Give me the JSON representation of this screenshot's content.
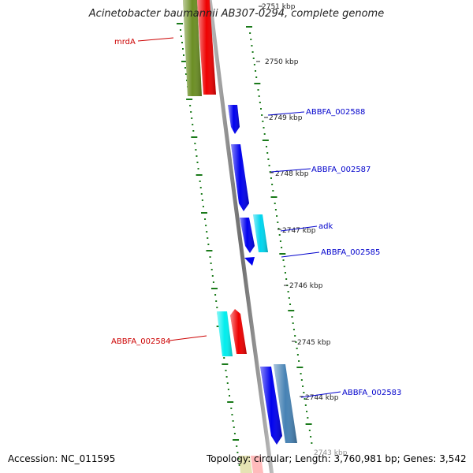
{
  "title": "Acinetobacter baumannii AB307-0294, complete genome",
  "accession": "Accession: NC_011595",
  "topology": "Topology: circular; Length: 3,760,981 bp; Genes: 3,542",
  "colors": {
    "backbone": "#8a8a8a",
    "tick": "#1a7a1a",
    "forward_label": "#0000cc",
    "reverse_label": "#cc0000",
    "scale_text": "#222222"
  },
  "scale_labels": [
    "2751 kbp",
    "2750 kbp",
    "2749 kbp",
    "2748 kbp",
    "2747 kbp",
    "2746 kbp",
    "2745 kbp",
    "2744 kbp",
    "2743 kbp"
  ],
  "gene_labels": {
    "mrdA": "mrdA",
    "ABBFA_002588": "ABBFA_002588",
    "ABBFA_002587": "ABBFA_002587",
    "adk": "adk",
    "ABBFA_002585": "ABBFA_002585",
    "ABBFA_002584": "ABBFA_002584",
    "ABBFA_002583": "ABBFA_002583"
  },
  "features": [
    {
      "name": "mrdA-olive",
      "color": "#6b8e23",
      "strand": "reverse"
    },
    {
      "name": "red-top",
      "color": "#ee0000",
      "strand": "reverse"
    },
    {
      "name": "ABBFA_002588",
      "color": "#0000ee",
      "strand": "forward"
    },
    {
      "name": "ABBFA_002587",
      "color": "#0000ee",
      "strand": "forward"
    },
    {
      "name": "adk-blue",
      "color": "#0000ee",
      "strand": "forward"
    },
    {
      "name": "adk-cyan",
      "color": "#00d5ee",
      "strand": "forward"
    },
    {
      "name": "ABBFA_002585",
      "color": "#0000ee",
      "strand": "forward"
    },
    {
      "name": "ABBFA_002584-cyan",
      "color": "#00eeee",
      "strand": "reverse"
    },
    {
      "name": "ABBFA_002584-red",
      "color": "#ee0000",
      "strand": "reverse"
    },
    {
      "name": "ABBFA_002583-blue",
      "color": "#0000ee",
      "strand": "forward"
    },
    {
      "name": "ABBFA_002583-steel",
      "color": "#4682b4",
      "strand": "forward"
    }
  ]
}
